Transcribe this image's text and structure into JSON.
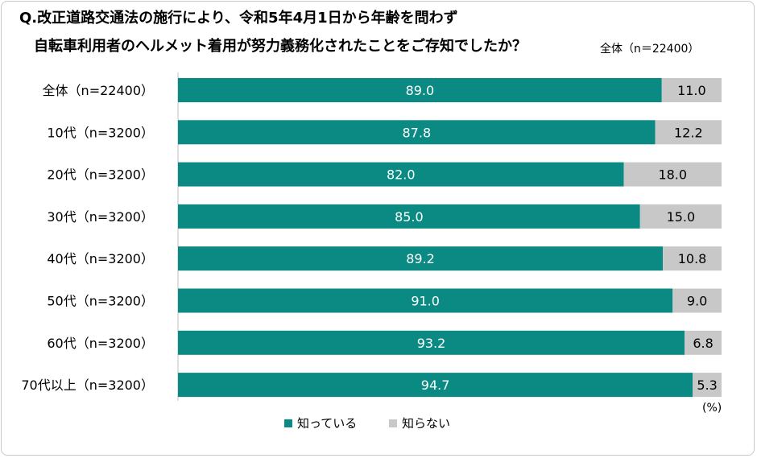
{
  "title_line1": "Q.改正道路交通法の施行により、令和5年4月1日から年齢を問わず",
  "title_line2": "自転車利用者のヘルメット着用が努力義務化されたことをご存知でしたか？",
  "subnote": "全体（n＝22400）",
  "unit_label": "(%)",
  "chart_data": {
    "type": "bar",
    "orientation": "horizontal",
    "stacked": true,
    "categories": [
      "全体（n=22400）",
      "10代（n=3200）",
      "20代（n=3200）",
      "30代（n=3200）",
      "40代（n=3200）",
      "50代（n=3200）",
      "60代（n=3200）",
      "70代以上（n=3200）"
    ],
    "series": [
      {
        "name": "知っている",
        "color": "#0b8a84",
        "values": [
          89.0,
          87.8,
          82.0,
          85.0,
          89.2,
          91.0,
          93.2,
          94.7
        ]
      },
      {
        "name": "知らない",
        "color": "#c8c8c8",
        "values": [
          11.0,
          12.2,
          18.0,
          15.0,
          10.8,
          9.0,
          6.8,
          5.3
        ]
      }
    ],
    "xlim": [
      0,
      100
    ],
    "grid": false,
    "legend_position": "bottom"
  }
}
